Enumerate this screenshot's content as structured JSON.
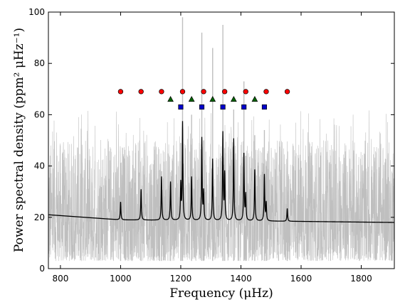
{
  "chart_data": {
    "type": "line",
    "xlabel": "Frequency (μHz)",
    "ylabel": "Power spectral density (ppm² μHz⁻¹)",
    "xlim": [
      760,
      1910
    ],
    "ylim": [
      0,
      100
    ],
    "x_ticks": [
      800,
      1000,
      1200,
      1400,
      1600,
      1800
    ],
    "y_ticks": [
      0,
      20,
      40,
      60,
      80,
      100
    ],
    "grid": false,
    "colors": {
      "raw_spectrum": "#bfbfbf",
      "model_fit": "#000000",
      "l0_marker": "#ff0000",
      "l1_marker": "#0000cc",
      "l2_marker": "#006400"
    },
    "series": [
      {
        "role": "raw-spectrum",
        "style": "noisy-gray-line",
        "noise_band": [
          3,
          50
        ],
        "peak_heights": [
          {
            "x": 1000,
            "y": 26
          },
          {
            "x": 1068,
            "y": 31
          },
          {
            "x": 1136,
            "y": 38
          },
          {
            "x": 1166,
            "y": 33
          },
          {
            "x": 1200,
            "y": 49
          },
          {
            "x": 1206,
            "y": 98
          },
          {
            "x": 1236,
            "y": 60
          },
          {
            "x": 1270,
            "y": 92
          },
          {
            "x": 1276,
            "y": 50
          },
          {
            "x": 1306,
            "y": 86
          },
          {
            "x": 1340,
            "y": 95
          },
          {
            "x": 1346,
            "y": 47
          },
          {
            "x": 1376,
            "y": 62
          },
          {
            "x": 1410,
            "y": 73
          },
          {
            "x": 1416,
            "y": 44
          },
          {
            "x": 1446,
            "y": 52
          },
          {
            "x": 1478,
            "y": 54
          },
          {
            "x": 1484,
            "y": 40
          },
          {
            "x": 1554,
            "y": 30
          }
        ]
      },
      {
        "role": "model-fit",
        "style": "black-line",
        "background": {
          "x": [
            760,
            1000,
            1300,
            1600,
            1910
          ],
          "y": [
            21,
            19,
            18.7,
            18.4,
            18
          ]
        },
        "peaks": [
          {
            "x": 1000,
            "h": 7
          },
          {
            "x": 1068,
            "h": 12
          },
          {
            "x": 1136,
            "h": 17
          },
          {
            "x": 1166,
            "h": 15
          },
          {
            "x": 1200,
            "h": 14
          },
          {
            "x": 1206,
            "h": 38
          },
          {
            "x": 1236,
            "h": 17
          },
          {
            "x": 1270,
            "h": 32
          },
          {
            "x": 1276,
            "h": 11
          },
          {
            "x": 1306,
            "h": 24
          },
          {
            "x": 1340,
            "h": 34
          },
          {
            "x": 1346,
            "h": 18
          },
          {
            "x": 1376,
            "h": 32
          },
          {
            "x": 1410,
            "h": 26
          },
          {
            "x": 1416,
            "h": 10
          },
          {
            "x": 1446,
            "h": 20
          },
          {
            "x": 1478,
            "h": 18
          },
          {
            "x": 1484,
            "h": 7
          },
          {
            "x": 1554,
            "h": 5
          }
        ]
      }
    ],
    "mode_markers": [
      {
        "marker": "circle",
        "color": "#ff0000",
        "y": 69,
        "x": [
          1000,
          1068,
          1136,
          1206,
          1276,
          1346,
          1416,
          1484,
          1554
        ]
      },
      {
        "marker": "triangle",
        "color": "#006400",
        "y": 66,
        "x": [
          1166,
          1236,
          1306,
          1376,
          1446
        ]
      },
      {
        "marker": "square",
        "color": "#0000cc",
        "y": 63,
        "x": [
          1200,
          1270,
          1340,
          1410,
          1478
        ]
      }
    ]
  }
}
